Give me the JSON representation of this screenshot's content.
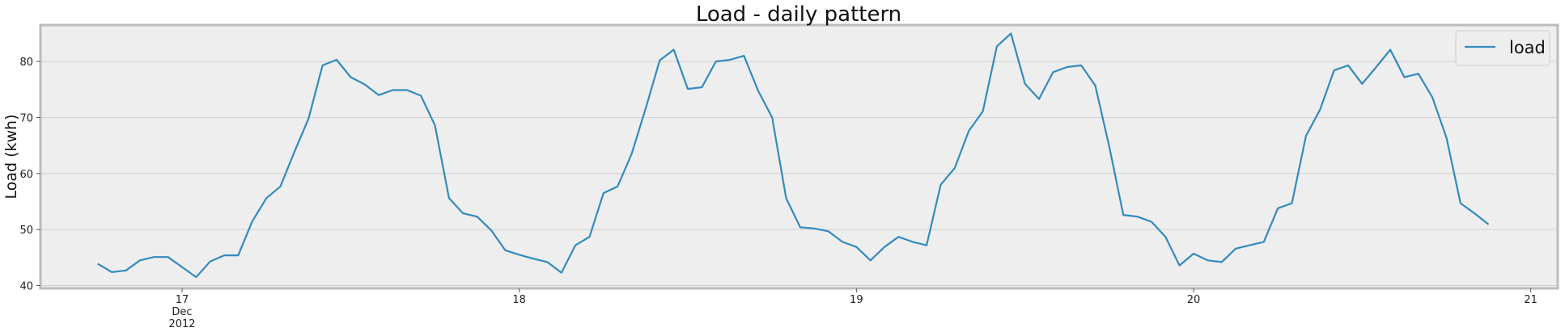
{
  "chart_data": {
    "type": "line",
    "title": "Load - daily pattern",
    "xlabel": "",
    "ylabel": "Load (kwh)",
    "x_ticks": [
      {
        "value": 17,
        "lines": [
          "17",
          "Dec",
          "2012"
        ]
      },
      {
        "value": 18,
        "lines": [
          "18"
        ]
      },
      {
        "value": 19,
        "lines": [
          "19"
        ]
      },
      {
        "value": 20,
        "lines": [
          "20"
        ]
      },
      {
        "value": 21,
        "lines": [
          "21"
        ]
      }
    ],
    "y_ticks": [
      40,
      50,
      60,
      70,
      80
    ],
    "xlim": [
      16.58,
      21.08
    ],
    "ylim": [
      39.5,
      86.5
    ],
    "grid": true,
    "legend": {
      "position": "top-right",
      "entries": [
        "load"
      ]
    },
    "colors": {
      "line": "#348ABD",
      "plot_bg": "#EEEEEE",
      "grid": "#D0D0D0",
      "frame": "#BCBCBC"
    },
    "series": [
      {
        "name": "load",
        "x": [
          16.75,
          16.79167,
          16.83333,
          16.875,
          16.91667,
          16.95833,
          17.0,
          17.04167,
          17.08333,
          17.125,
          17.16667,
          17.20833,
          17.25,
          17.29167,
          17.33333,
          17.375,
          17.41667,
          17.45833,
          17.5,
          17.54167,
          17.58333,
          17.625,
          17.66667,
          17.70833,
          17.75,
          17.79167,
          17.83333,
          17.875,
          17.91667,
          17.95833,
          18.0,
          18.04167,
          18.08333,
          18.125,
          18.16667,
          18.20833,
          18.25,
          18.29167,
          18.33333,
          18.375,
          18.41667,
          18.45833,
          18.5,
          18.54167,
          18.58333,
          18.625,
          18.66667,
          18.70833,
          18.75,
          18.79167,
          18.83333,
          18.875,
          18.91667,
          18.95833,
          19.0,
          19.04167,
          19.08333,
          19.125,
          19.16667,
          19.20833,
          19.25,
          19.29167,
          19.33333,
          19.375,
          19.41667,
          19.45833,
          19.5,
          19.54167,
          19.58333,
          19.625,
          19.66667,
          19.70833,
          19.75,
          19.79167,
          19.83333,
          19.875,
          19.91667,
          19.95833,
          20.0,
          20.04167,
          20.08333,
          20.125,
          20.16667,
          20.20833,
          20.25,
          20.29167,
          20.33333,
          20.375,
          20.41667,
          20.45833,
          20.5,
          20.54167,
          20.58333,
          20.625,
          20.66667,
          20.70833,
          20.75,
          20.79167,
          20.83333,
          20.875
        ],
        "values": [
          43.9,
          42.4,
          42.7,
          44.5,
          45.1,
          45.1,
          43.3,
          41.5,
          44.3,
          45.4,
          45.4,
          51.5,
          55.6,
          57.7,
          63.9,
          69.8,
          79.3,
          80.3,
          77.2,
          75.9,
          74.0,
          74.9,
          74.9,
          73.9,
          68.6,
          55.6,
          52.9,
          52.3,
          49.9,
          46.3,
          45.5,
          44.8,
          44.2,
          42.3,
          47.2,
          48.7,
          56.5,
          57.7,
          63.5,
          71.6,
          80.2,
          82.1,
          75.1,
          75.4,
          80.0,
          80.3,
          81.0,
          74.8,
          70.0,
          55.6,
          50.4,
          50.2,
          49.7,
          47.8,
          46.9,
          44.5,
          46.9,
          48.7,
          47.8,
          47.2,
          58.0,
          61.0,
          67.6,
          71.1,
          82.7,
          85.0,
          76.0,
          73.3,
          78.1,
          79.0,
          79.3,
          75.7,
          64.8,
          52.6,
          52.3,
          51.4,
          48.7,
          43.6,
          45.7,
          44.5,
          44.2,
          46.6,
          47.2,
          47.8,
          53.8,
          54.7,
          66.7,
          71.4,
          78.4,
          79.3,
          76.0,
          79.0,
          82.1,
          77.2,
          77.8,
          73.6,
          66.4,
          54.7,
          52.9,
          50.9
        ]
      }
    ]
  }
}
